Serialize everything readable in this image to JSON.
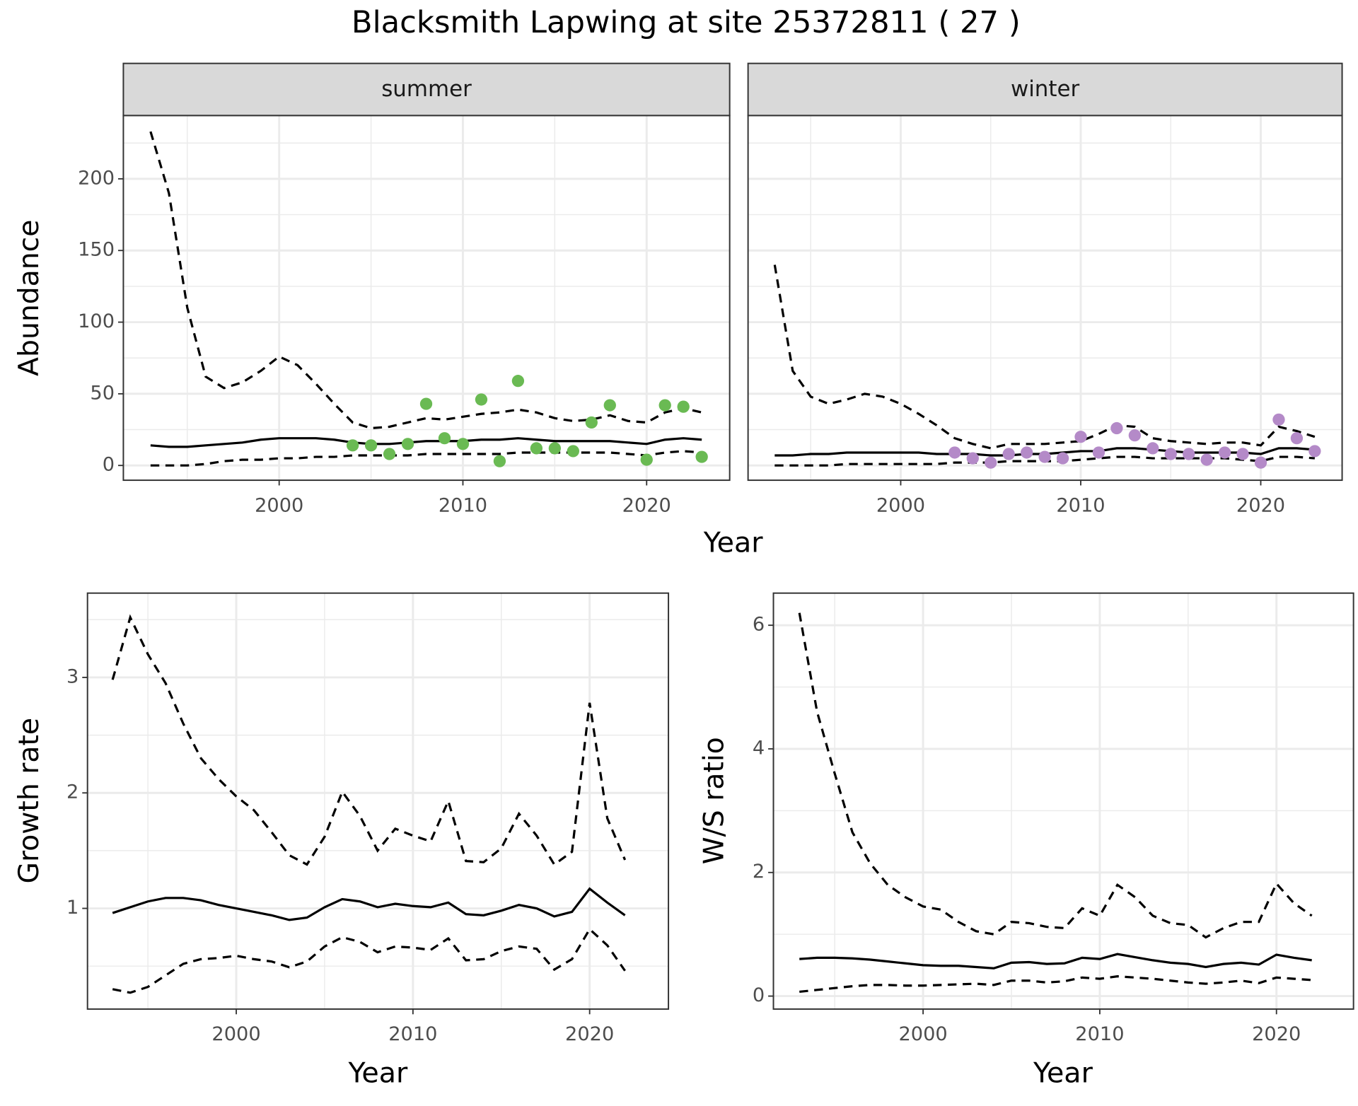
{
  "title": "Blacksmith Lapwing at site 25372811 ( 27 )",
  "chart_data": [
    {
      "type": "line",
      "panel": "summer",
      "y_label": "Abundance",
      "x_label": "Year",
      "xlim": [
        1991.52,
        2024.52
      ],
      "ylim": [
        -10.3,
        244.2
      ],
      "xticks": [
        2000,
        2010,
        2020
      ],
      "x_minor_ticks": [
        1995,
        2005,
        2015
      ],
      "yticks": [
        0,
        50,
        100,
        150,
        200
      ],
      "y_minor_ticks": [
        25,
        75,
        125,
        175,
        225
      ],
      "ytick_labels": true,
      "grid": true,
      "x": [
        1993,
        1994,
        1995,
        1996,
        1997,
        1998,
        1999,
        2000,
        2001,
        2002,
        2003,
        2004,
        2005,
        2006,
        2007,
        2008,
        2009,
        2010,
        2011,
        2012,
        2013,
        2014,
        2015,
        2016,
        2017,
        2018,
        2019,
        2020,
        2021,
        2022,
        2023
      ],
      "series": [
        {
          "color": "#000000",
          "linestyle": "solid",
          "values": [
            14,
            13,
            13,
            14,
            15,
            16,
            18,
            19,
            19,
            19,
            18,
            16,
            15,
            15,
            16,
            17,
            17,
            17,
            18,
            18,
            19,
            18,
            17,
            17,
            17,
            17,
            16,
            15,
            18,
            19,
            18
          ]
        },
        {
          "color": "#000000",
          "linestyle": "dashed",
          "values": [
            233,
            190,
            110,
            62,
            54,
            58,
            66,
            76,
            70,
            57,
            43,
            30,
            26,
            27,
            30,
            33,
            32,
            34,
            36,
            37,
            39,
            37,
            33,
            31,
            32,
            35,
            31,
            30,
            37,
            40,
            37
          ]
        },
        {
          "color": "#000000",
          "linestyle": "dashed",
          "values": [
            0,
            0,
            0,
            1,
            3,
            4,
            4,
            5,
            5,
            6,
            6,
            7,
            7,
            7,
            7,
            8,
            8,
            8,
            8,
            8,
            9,
            9,
            9,
            9,
            9,
            9,
            8,
            7,
            9,
            10,
            9
          ]
        }
      ],
      "points": {
        "color": "#6aba53",
        "x": [
          2004,
          2005,
          2006,
          2007,
          2008,
          2009,
          2010,
          2011,
          2012,
          2013,
          2014,
          2015,
          2016,
          2017,
          2018,
          2020,
          2021,
          2022,
          2023
        ],
        "values": [
          14,
          14,
          8,
          15,
          43,
          19,
          15,
          46,
          3,
          59,
          12,
          12,
          10,
          30,
          42,
          4,
          42,
          41,
          6
        ]
      }
    },
    {
      "type": "line",
      "panel": "winter",
      "xlim": [
        1991.52,
        2024.52
      ],
      "ylim": [
        -10.3,
        244.2
      ],
      "xticks": [
        2000,
        2010,
        2020
      ],
      "x_minor_ticks": [
        1995,
        2005,
        2015
      ],
      "yticks": [
        0,
        50,
        100,
        150,
        200
      ],
      "y_minor_ticks": [
        25,
        75,
        125,
        175,
        225
      ],
      "ytick_labels": false,
      "grid": true,
      "x": [
        1993,
        1994,
        1995,
        1996,
        1997,
        1998,
        1999,
        2000,
        2001,
        2002,
        2003,
        2004,
        2005,
        2006,
        2007,
        2008,
        2009,
        2010,
        2011,
        2012,
        2013,
        2014,
        2015,
        2016,
        2017,
        2018,
        2019,
        2020,
        2021,
        2022,
        2023
      ],
      "series": [
        {
          "color": "#000000",
          "linestyle": "solid",
          "values": [
            7,
            7,
            8,
            8,
            9,
            9,
            9,
            9,
            9,
            8,
            8,
            8,
            7,
            7,
            8,
            8,
            9,
            10,
            10,
            12,
            12,
            11,
            10,
            9,
            9,
            9,
            9,
            8,
            12,
            12,
            11
          ]
        },
        {
          "color": "#000000",
          "linestyle": "dashed",
          "values": [
            140,
            66,
            48,
            43,
            46,
            50,
            48,
            43,
            36,
            28,
            19,
            15,
            12,
            15,
            15,
            15,
            16,
            17,
            22,
            28,
            27,
            19,
            17,
            16,
            15,
            16,
            16,
            14,
            27,
            24,
            20
          ]
        },
        {
          "color": "#000000",
          "linestyle": "dashed",
          "values": [
            0,
            0,
            0,
            0,
            1,
            1,
            1,
            1,
            1,
            1,
            2,
            2,
            2,
            3,
            3,
            3,
            3,
            4,
            5,
            6,
            6,
            5,
            5,
            5,
            5,
            5,
            4,
            3,
            6,
            6,
            5
          ]
        }
      ],
      "points": {
        "color": "#b48ac8",
        "x": [
          2003,
          2004,
          2005,
          2006,
          2007,
          2008,
          2009,
          2010,
          2011,
          2012,
          2013,
          2014,
          2015,
          2016,
          2017,
          2018,
          2019,
          2020,
          2021,
          2022,
          2023
        ],
        "values": [
          9,
          5,
          2,
          8,
          9,
          6,
          5,
          20,
          9,
          26,
          21,
          12,
          8,
          8,
          4,
          9,
          8,
          2,
          32,
          19,
          10
        ]
      }
    },
    {
      "type": "line",
      "y_label": "Growth rate",
      "x_label": "Year",
      "xlim": [
        1991.58,
        2024.46
      ],
      "ylim": [
        0.128,
        3.73
      ],
      "xticks": [
        2000,
        2010,
        2020
      ],
      "x_minor_ticks": [
        1995,
        2005,
        2015
      ],
      "yticks": [
        1,
        2,
        3
      ],
      "y_minor_ticks": [
        0.5,
        1.5,
        2.5,
        3.5
      ],
      "ytick_labels": true,
      "grid": true,
      "x": [
        1993,
        1994,
        1995,
        1996,
        1997,
        1998,
        1999,
        2000,
        2001,
        2002,
        2003,
        2004,
        2005,
        2006,
        2007,
        2008,
        2009,
        2010,
        2011,
        2012,
        2013,
        2014,
        2015,
        2016,
        2017,
        2018,
        2019,
        2020,
        2021,
        2022
      ],
      "series": [
        {
          "color": "#000000",
          "linestyle": "solid",
          "values": [
            0.96,
            1.01,
            1.06,
            1.09,
            1.09,
            1.07,
            1.03,
            1.0,
            0.97,
            0.94,
            0.9,
            0.92,
            1.01,
            1.08,
            1.06,
            1.01,
            1.04,
            1.02,
            1.01,
            1.05,
            0.95,
            0.94,
            0.98,
            1.03,
            1.0,
            0.93,
            0.97,
            1.17,
            1.05,
            0.94
          ]
        },
        {
          "color": "#000000",
          "linestyle": "dashed",
          "values": [
            2.98,
            3.52,
            3.2,
            2.95,
            2.6,
            2.3,
            2.12,
            1.97,
            1.85,
            1.66,
            1.46,
            1.38,
            1.62,
            2.01,
            1.8,
            1.5,
            1.69,
            1.63,
            1.58,
            1.93,
            1.41,
            1.4,
            1.52,
            1.82,
            1.63,
            1.38,
            1.49,
            2.78,
            1.78,
            1.42
          ]
        },
        {
          "color": "#000000",
          "linestyle": "dashed",
          "values": [
            0.3,
            0.27,
            0.32,
            0.42,
            0.52,
            0.56,
            0.57,
            0.59,
            0.56,
            0.54,
            0.49,
            0.54,
            0.67,
            0.75,
            0.71,
            0.62,
            0.67,
            0.66,
            0.64,
            0.74,
            0.55,
            0.56,
            0.63,
            0.67,
            0.65,
            0.47,
            0.56,
            0.82,
            0.68,
            0.46
          ]
        }
      ]
    },
    {
      "type": "line",
      "y_label": "W/S ratio",
      "x_label": "Year",
      "xlim": [
        1991.53,
        2024.36
      ],
      "ylim": [
        -0.21,
        6.52
      ],
      "xticks": [
        2000,
        2010,
        2020
      ],
      "x_minor_ticks": [
        1995,
        2005,
        2015
      ],
      "yticks": [
        0,
        2,
        4,
        6
      ],
      "y_minor_ticks": [
        1,
        3,
        5
      ],
      "ytick_labels": true,
      "grid": true,
      "x": [
        1993,
        1994,
        1995,
        1996,
        1997,
        1998,
        1999,
        2000,
        2001,
        2002,
        2003,
        2004,
        2005,
        2006,
        2007,
        2008,
        2009,
        2010,
        2011,
        2012,
        2013,
        2014,
        2015,
        2016,
        2017,
        2018,
        2019,
        2020,
        2021,
        2022
      ],
      "series": [
        {
          "color": "#000000",
          "linestyle": "solid",
          "values": [
            0.6,
            0.62,
            0.62,
            0.61,
            0.59,
            0.56,
            0.53,
            0.5,
            0.49,
            0.49,
            0.47,
            0.45,
            0.54,
            0.55,
            0.52,
            0.53,
            0.62,
            0.6,
            0.68,
            0.63,
            0.58,
            0.54,
            0.52,
            0.47,
            0.52,
            0.54,
            0.51,
            0.67,
            0.62,
            0.58
          ]
        },
        {
          "color": "#000000",
          "linestyle": "dashed",
          "values": [
            6.2,
            4.6,
            3.6,
            2.65,
            2.15,
            1.8,
            1.6,
            1.45,
            1.4,
            1.2,
            1.05,
            1.0,
            1.2,
            1.18,
            1.12,
            1.1,
            1.42,
            1.3,
            1.8,
            1.6,
            1.3,
            1.18,
            1.15,
            0.95,
            1.1,
            1.2,
            1.2,
            1.82,
            1.5,
            1.3
          ]
        },
        {
          "color": "#000000",
          "linestyle": "dashed",
          "values": [
            0.07,
            0.1,
            0.13,
            0.16,
            0.18,
            0.18,
            0.17,
            0.17,
            0.18,
            0.19,
            0.2,
            0.18,
            0.25,
            0.25,
            0.22,
            0.24,
            0.3,
            0.28,
            0.32,
            0.3,
            0.28,
            0.25,
            0.22,
            0.2,
            0.22,
            0.25,
            0.21,
            0.3,
            0.28,
            0.26
          ]
        }
      ]
    }
  ]
}
